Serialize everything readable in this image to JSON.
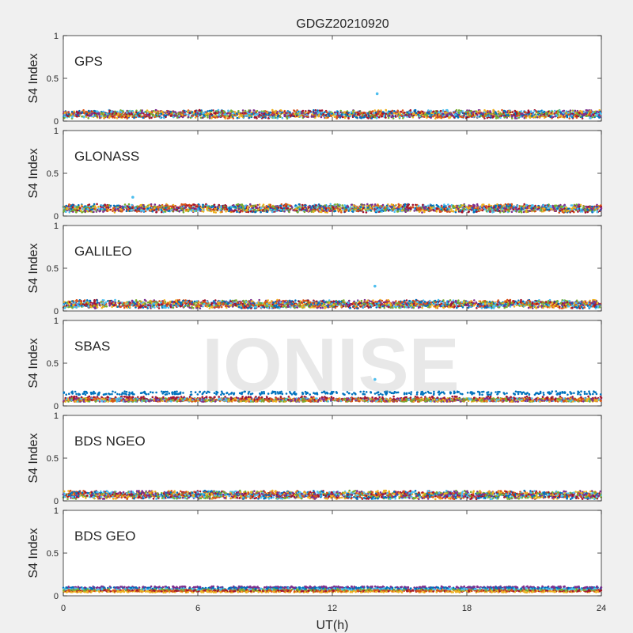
{
  "title": "GDGZ20210920",
  "watermark": "IONISE",
  "chart_data": [
    {
      "type": "scatter",
      "label": "GPS",
      "ylabel": "S4 Index",
      "xlim": [
        0,
        24
      ],
      "ylim": [
        0,
        1
      ],
      "yticks": [
        0,
        0.5,
        1
      ],
      "ytick_labels": [
        "0",
        "0.5",
        "1"
      ],
      "baseline": 0.08,
      "outliers": [
        {
          "x": 14.0,
          "y": 0.32
        }
      ]
    },
    {
      "type": "scatter",
      "label": "GLONASS",
      "ylabel": "S4 Index",
      "xlim": [
        0,
        24
      ],
      "ylim": [
        0,
        1
      ],
      "yticks": [
        0,
        0.5,
        1
      ],
      "ytick_labels": [
        "0",
        "0.5",
        "1"
      ],
      "baseline": 0.09,
      "outliers": [
        {
          "x": 3.1,
          "y": 0.22
        }
      ]
    },
    {
      "type": "scatter",
      "label": "GALILEO",
      "ylabel": "S4 Index",
      "xlim": [
        0,
        24
      ],
      "ylim": [
        0,
        1
      ],
      "yticks": [
        0,
        0.5,
        1
      ],
      "ytick_labels": [
        "0",
        "0.5",
        "1"
      ],
      "baseline": 0.08,
      "outliers": [
        {
          "x": 13.9,
          "y": 0.29
        }
      ]
    },
    {
      "type": "scatter",
      "label": "SBAS",
      "ylabel": "S4 Index",
      "xlim": [
        0,
        24
      ],
      "ylim": [
        0,
        1
      ],
      "yticks": [
        0,
        0.5,
        1
      ],
      "ytick_labels": [
        "0",
        "0.5",
        "1"
      ],
      "baseline": 0.15,
      "outliers": [
        {
          "x": 13.9,
          "y": 0.31
        }
      ]
    },
    {
      "type": "scatter",
      "label": "BDS NGEO",
      "ylabel": "S4 Index",
      "xlim": [
        0,
        24
      ],
      "ylim": [
        0,
        1
      ],
      "yticks": [
        0,
        0.5,
        1
      ],
      "ytick_labels": [
        "0",
        "0.5",
        "1"
      ],
      "baseline": 0.07,
      "outliers": []
    },
    {
      "type": "scatter",
      "label": "BDS GEO",
      "ylabel": "S4 Index",
      "xlim": [
        0,
        24
      ],
      "ylim": [
        0,
        1
      ],
      "yticks": [
        0,
        0.5,
        1
      ],
      "ytick_labels": [
        "0",
        "0.5",
        "1"
      ],
      "baseline": 0.08,
      "outliers": []
    }
  ],
  "xaxis": {
    "label": "UT(h)",
    "ticks": [
      0,
      6,
      12,
      18,
      24
    ],
    "tick_labels": [
      "0",
      "6",
      "12",
      "18",
      "24"
    ]
  },
  "series_colors": [
    "#0072BD",
    "#D95319",
    "#EDB120",
    "#7E2F8E",
    "#77AC30",
    "#4DBEEE",
    "#A2142F"
  ]
}
